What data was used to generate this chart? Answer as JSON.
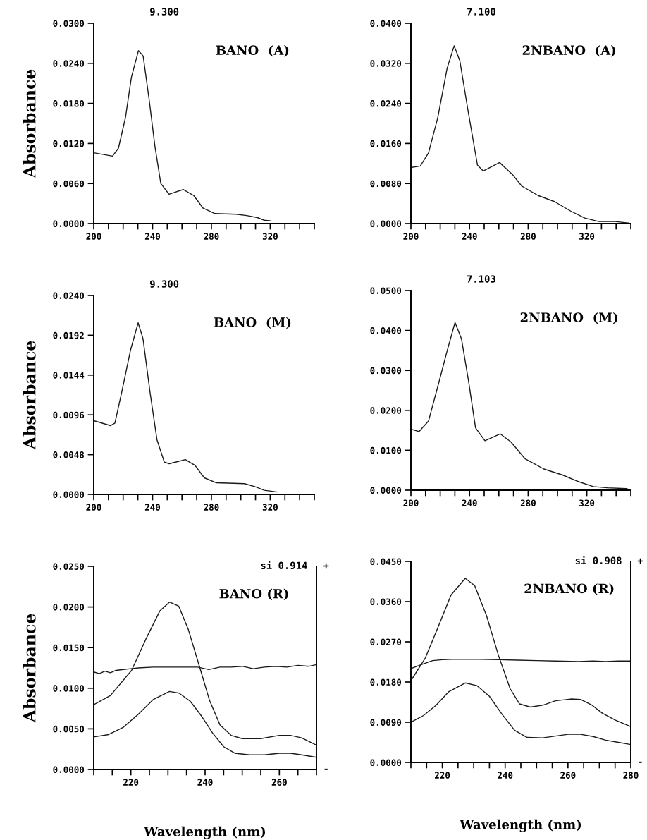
{
  "chart_data": [
    {
      "type": "line",
      "title": "BANO  (A)",
      "ylabel": "Absorbance",
      "annotations": [
        "9.300"
      ],
      "xlim": [
        200,
        350
      ],
      "xticks": [
        200,
        {
          "value": 210,
          "label": null
        },
        {
          "value": 220,
          "label": null
        },
        {
          "value": 230,
          "label": null
        },
        240,
        {
          "value": 250,
          "label": null
        },
        {
          "value": 260,
          "label": null
        },
        {
          "value": 270,
          "label": null
        },
        280,
        {
          "value": 290,
          "label": null
        },
        {
          "value": 300,
          "label": null
        },
        {
          "value": 310,
          "label": null
        },
        320,
        {
          "value": 330,
          "label": null
        },
        {
          "value": 340,
          "label": null
        },
        {
          "value": 350,
          "label": null
        }
      ],
      "ylim": [
        0,
        0.03
      ],
      "yticks": [
        {
          "value": 0,
          "label": "0.0000"
        },
        {
          "value": 0.006,
          "label": "0.0060"
        },
        {
          "value": 0.012,
          "label": "0.0120"
        },
        {
          "value": 0.018,
          "label": "0.0180"
        },
        {
          "value": 0.024,
          "label": "0.0240"
        },
        {
          "value": 0.03,
          "label": "0.0300"
        }
      ],
      "series": [
        {
          "color": "#1a1a1a",
          "x": [
            200,
            212.8,
            216.8,
            221.6,
            225.6,
            230.4,
            233.6,
            237.6,
            241.6,
            245.6,
            251.2,
            260.8,
            268,
            274.4,
            282.4,
            296.8,
            304,
            311.3,
            316,
            320
          ],
          "values": [
            0.0106,
            0.0101,
            0.0113,
            0.0159,
            0.0219,
            0.0259,
            0.0251,
            0.0187,
            0.0116,
            0.006,
            0.0044,
            0.0051,
            0.0042,
            0.0023,
            0.0015,
            0.0014,
            0.0012,
            0.0009,
            0.0005,
            0.0004
          ]
        }
      ]
    },
    {
      "type": "line",
      "title": "2NBANO  (A)",
      "annotations": [
        "7.100"
      ],
      "xlim": [
        200,
        350
      ],
      "xticks": [
        200,
        {
          "value": 210,
          "label": null
        },
        {
          "value": 220,
          "label": null
        },
        {
          "value": 230,
          "label": null
        },
        240,
        {
          "value": 250,
          "label": null
        },
        {
          "value": 260,
          "label": null
        },
        {
          "value": 270,
          "label": null
        },
        280,
        {
          "value": 290,
          "label": null
        },
        {
          "value": 300,
          "label": null
        },
        {
          "value": 310,
          "label": null
        },
        320,
        {
          "value": 330,
          "label": null
        },
        {
          "value": 340,
          "label": null
        },
        {
          "value": 350,
          "label": null
        }
      ],
      "ylim": [
        0,
        0.04
      ],
      "yticks": [
        {
          "value": 0,
          "label": "0.0000"
        },
        {
          "value": 0.008,
          "label": "0.0080"
        },
        {
          "value": 0.016,
          "label": "0.0160"
        },
        {
          "value": 0.024,
          "label": "0.0240"
        },
        {
          "value": 0.032,
          "label": "0.0320"
        },
        {
          "value": 0.04,
          "label": "0.0400"
        }
      ],
      "series": [
        {
          "color": "#1a1a1a",
          "x": [
            200,
            206.4,
            212,
            218.3,
            224.7,
            229.5,
            233.4,
            239,
            245.4,
            249.4,
            260.5,
            269.3,
            275.6,
            286.8,
            297.9,
            309,
            318.6,
            328.2,
            339.3,
            348.9
          ],
          "values": [
            0.0112,
            0.0115,
            0.0141,
            0.0211,
            0.031,
            0.0355,
            0.0325,
            0.0225,
            0.0117,
            0.0105,
            0.0122,
            0.0098,
            0.0075,
            0.0056,
            0.0044,
            0.0025,
            0.0011,
            0.0004,
            0.0004,
            0.0001
          ]
        }
      ]
    },
    {
      "type": "line",
      "title": "BANO  (M)",
      "ylabel": "Absorbance",
      "annotations": [
        "9.300"
      ],
      "xlim": [
        200,
        350
      ],
      "xticks": [
        200,
        {
          "value": 210,
          "label": null
        },
        {
          "value": 220,
          "label": null
        },
        {
          "value": 230,
          "label": null
        },
        240,
        {
          "value": 250,
          "label": null
        },
        {
          "value": 260,
          "label": null
        },
        {
          "value": 270,
          "label": null
        },
        280,
        {
          "value": 290,
          "label": null
        },
        {
          "value": 300,
          "label": null
        },
        {
          "value": 310,
          "label": null
        },
        320,
        {
          "value": 330,
          "label": null
        },
        {
          "value": 340,
          "label": null
        },
        {
          "value": 350,
          "label": null
        }
      ],
      "ylim": [
        0,
        0.024
      ],
      "yticks": [
        {
          "value": 0,
          "label": "0.0000"
        },
        {
          "value": 0.0048,
          "label": "0.0048"
        },
        {
          "value": 0.0096,
          "label": "0.0096"
        },
        {
          "value": 0.0144,
          "label": "0.0144"
        },
        {
          "value": 0.0192,
          "label": "0.0192"
        },
        {
          "value": 0.024,
          "label": "0.0240"
        }
      ],
      "series": [
        {
          "color": "#1a1a1a",
          "x": [
            200,
            211.5,
            214.4,
            219,
            225,
            230.2,
            233.5,
            238.3,
            243,
            248,
            251.3,
            262.3,
            268.9,
            275.2,
            283.4,
            302.5,
            310.2,
            316,
            324.6
          ],
          "values": [
            0.0089,
            0.0083,
            0.0086,
            0.0123,
            0.0174,
            0.0207,
            0.0188,
            0.0123,
            0.0066,
            0.0039,
            0.0037,
            0.0042,
            0.0035,
            0.002,
            0.0014,
            0.0013,
            0.0009,
            0.0005,
            0.0003
          ]
        }
      ]
    },
    {
      "type": "line",
      "title": "2NBANO  (M)",
      "annotations": [
        "7.103"
      ],
      "xlim": [
        200,
        350
      ],
      "xticks": [
        200,
        {
          "value": 210,
          "label": null
        },
        {
          "value": 220,
          "label": null
        },
        {
          "value": 230,
          "label": null
        },
        240,
        {
          "value": 250,
          "label": null
        },
        {
          "value": 260,
          "label": null
        },
        {
          "value": 270,
          "label": null
        },
        280,
        {
          "value": 290,
          "label": null
        },
        {
          "value": 300,
          "label": null
        },
        {
          "value": 310,
          "label": null
        },
        320,
        {
          "value": 330,
          "label": null
        },
        {
          "value": 340,
          "label": null
        },
        {
          "value": 350,
          "label": null
        }
      ],
      "ylim": [
        0,
        0.05
      ],
      "yticks": [
        {
          "value": 0,
          "label": "0.0000"
        },
        {
          "value": 0.01,
          "label": "0.0100"
        },
        {
          "value": 0.02,
          "label": "0.0200"
        },
        {
          "value": 0.03,
          "label": "0.0300"
        },
        {
          "value": 0.04,
          "label": "0.0400"
        },
        {
          "value": 0.05,
          "label": "0.0500"
        }
      ],
      "series": [
        {
          "color": "#1a1a1a",
          "x": [
            200,
            205.6,
            212,
            218.5,
            224.8,
            230.1,
            234.5,
            239.3,
            244.1,
            250.5,
            261,
            268.2,
            277.8,
            290.7,
            303.5,
            313.1,
            324.4,
            334,
            346.9,
            350
          ],
          "values": [
            0.0153,
            0.0147,
            0.0173,
            0.0262,
            0.035,
            0.042,
            0.0379,
            0.0274,
            0.0156,
            0.0124,
            0.0141,
            0.0121,
            0.0079,
            0.0053,
            0.0038,
            0.0023,
            0.0009,
            0.0006,
            0.0004,
            0
          ]
        }
      ]
    },
    {
      "type": "line",
      "title": "BANO (R)",
      "ylabel": "Absorbance",
      "xlabel": "Wavelength (nm)",
      "annotations": [
        "si 0.914",
        "+",
        "-"
      ],
      "xlim": [
        210,
        270
      ],
      "xticks": [
        {
          "value": 210,
          "label": null
        },
        {
          "value": 215,
          "label": null
        },
        220,
        {
          "value": 225,
          "label": null
        },
        {
          "value": 230,
          "label": null
        },
        {
          "value": 235,
          "label": null
        },
        240,
        {
          "value": 245,
          "label": null
        },
        {
          "value": 250,
          "label": null
        },
        {
          "value": 255,
          "label": null
        },
        260,
        {
          "value": 265,
          "label": null
        },
        {
          "value": 270,
          "label": null
        }
      ],
      "ylim": [
        0,
        0.025
      ],
      "yticks": [
        {
          "value": 0,
          "label": "0.0000"
        },
        {
          "value": 0.005,
          "label": "0.0050"
        },
        {
          "value": 0.01,
          "label": "0.0100"
        },
        {
          "value": 0.015,
          "label": "0.0150"
        },
        {
          "value": 0.02,
          "label": "0.0200"
        },
        {
          "value": 0.025,
          "label": "0.0250"
        }
      ],
      "series": [
        {
          "color": "#1a1a1a",
          "x": [
            210.1,
            214.5,
            220.2,
            224,
            227.8,
            230.4,
            232.9,
            235.5,
            238.6,
            241.2,
            244,
            247,
            250,
            255,
            260,
            263,
            266,
            270
          ],
          "values": [
            0.008,
            0.0091,
            0.0122,
            0.016,
            0.0195,
            0.0206,
            0.0201,
            0.0172,
            0.0125,
            0.0085,
            0.0055,
            0.0042,
            0.0038,
            0.0038,
            0.0042,
            0.0042,
            0.0039,
            0.003
          ]
        },
        {
          "color": "#1a1a1a",
          "x": [
            210,
            214,
            218,
            222,
            226,
            230.4,
            233,
            236,
            239,
            242,
            245,
            248,
            252,
            256,
            260,
            263,
            266,
            270
          ],
          "values": [
            0.004,
            0.0043,
            0.0052,
            0.0068,
            0.0086,
            0.0096,
            0.0094,
            0.0084,
            0.0066,
            0.0045,
            0.0028,
            0.002,
            0.0018,
            0.0018,
            0.002,
            0.002,
            0.0018,
            0.0015
          ]
        },
        {
          "color": "#1a1a1a",
          "x": [
            210,
            211.5,
            213,
            214.5,
            216,
            218,
            220,
            222,
            226,
            230,
            234,
            238,
            241,
            244,
            247,
            250,
            253,
            256,
            259,
            262,
            265,
            268,
            270
          ],
          "values": [
            0.012,
            0.0118,
            0.0121,
            0.0119,
            0.0122,
            0.0123,
            0.0124,
            0.0125,
            0.0126,
            0.0126,
            0.0126,
            0.0126,
            0.0123,
            0.0126,
            0.0126,
            0.0127,
            0.0124,
            0.0126,
            0.0127,
            0.0126,
            0.0128,
            0.0127,
            0.0129
          ]
        }
      ]
    },
    {
      "type": "line",
      "title": "2NBANO (R)",
      "xlabel": "Wavelength (nm)",
      "annotations": [
        "si 0.908",
        "+",
        "-"
      ],
      "xlim": [
        210,
        280
      ],
      "xticks": [
        {
          "value": 210,
          "label": null
        },
        {
          "value": 215,
          "label": null
        },
        220,
        {
          "value": 225,
          "label": null
        },
        {
          "value": 230,
          "label": null
        },
        {
          "value": 235,
          "label": null
        },
        240,
        {
          "value": 245,
          "label": null
        },
        {
          "value": 250,
          "label": null
        },
        {
          "value": 255,
          "label": null
        },
        260,
        {
          "value": 265,
          "label": null
        },
        {
          "value": 270,
          "label": null
        },
        {
          "value": 275,
          "label": null
        },
        280
      ],
      "ylim": [
        0,
        0.045
      ],
      "yticks": [
        {
          "value": 0,
          "label": "0.0000"
        },
        {
          "value": 0.009,
          "label": "0.0090"
        },
        {
          "value": 0.018,
          "label": "0.0180"
        },
        {
          "value": 0.027,
          "label": "0.0270"
        },
        {
          "value": 0.036,
          "label": "0.0360"
        },
        {
          "value": 0.045,
          "label": "0.0450"
        }
      ],
      "series": [
        {
          "color": "#1a1a1a",
          "x": [
            210.1,
            214.6,
            218.3,
            222.8,
            227.3,
            230.3,
            234.1,
            237.9,
            241.6,
            244.6,
            248,
            252,
            256,
            260.9,
            264,
            267.7,
            271,
            275,
            280
          ],
          "values": [
            0.0184,
            0.0234,
            0.0297,
            0.0375,
            0.0412,
            0.0396,
            0.0328,
            0.0239,
            0.0165,
            0.0131,
            0.0124,
            0.0128,
            0.0138,
            0.0142,
            0.0141,
            0.0128,
            0.011,
            0.0095,
            0.008
          ]
        },
        {
          "color": "#1a1a1a",
          "x": [
            210,
            214,
            218,
            222,
            227.3,
            231,
            235,
            239,
            243,
            247,
            252,
            256,
            260,
            264,
            268,
            272,
            276,
            280
          ],
          "values": [
            0.009,
            0.0105,
            0.0128,
            0.0158,
            0.0178,
            0.0172,
            0.0148,
            0.0108,
            0.0072,
            0.0056,
            0.0055,
            0.0059,
            0.0063,
            0.0063,
            0.0058,
            0.005,
            0.0045,
            0.004
          ]
        },
        {
          "color": "#1a1a1a",
          "x": [
            210,
            213,
            216.9,
            220,
            223,
            226.9,
            232,
            238,
            244,
            250,
            256,
            263.3,
            268,
            272,
            276,
            280
          ],
          "values": [
            0.021,
            0.0218,
            0.0228,
            0.023,
            0.0231,
            0.0231,
            0.0231,
            0.023,
            0.0229,
            0.0228,
            0.0227,
            0.0226,
            0.0227,
            0.0226,
            0.0227,
            0.0227
          ]
        }
      ]
    }
  ]
}
